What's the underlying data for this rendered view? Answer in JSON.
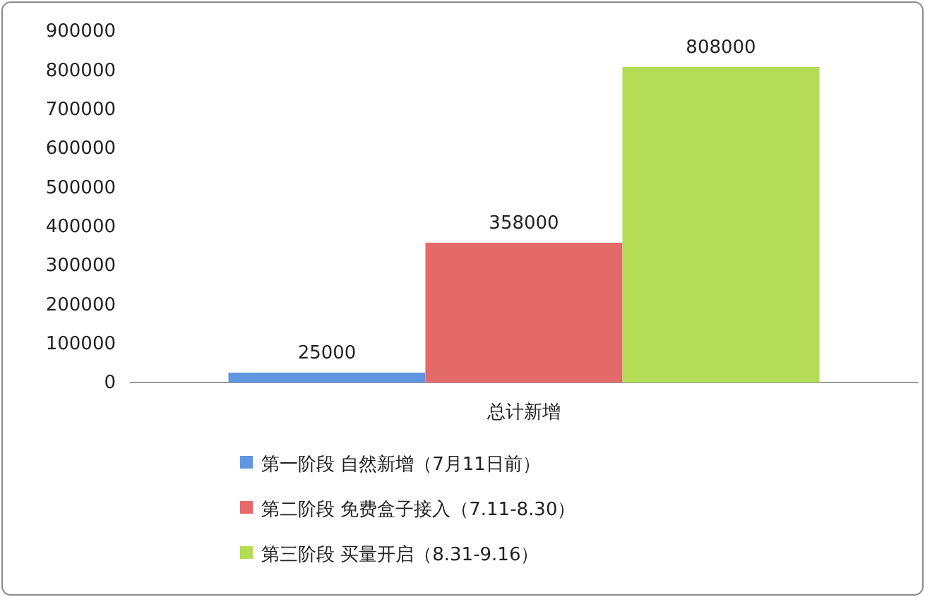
{
  "chart_data": {
    "type": "bar",
    "categories": [
      "总计新增"
    ],
    "series": [
      {
        "name": "第一阶段 自然新增（7月11日前）",
        "color": "#6095e0",
        "values": [
          25000
        ]
      },
      {
        "name": "第二阶段 免费盒子接入（7.11-8.30）",
        "color": "#e46a6a",
        "values": [
          358000
        ]
      },
      {
        "name": "第三阶段 买量开启（8.31-9.16）",
        "color": "#b4dc56",
        "values": [
          808000
        ]
      }
    ],
    "ylim": [
      0,
      900000
    ],
    "yticks": [
      0,
      100000,
      200000,
      300000,
      400000,
      500000,
      600000,
      700000,
      800000,
      900000
    ],
    "data_labels": true,
    "legend": "bottom"
  }
}
